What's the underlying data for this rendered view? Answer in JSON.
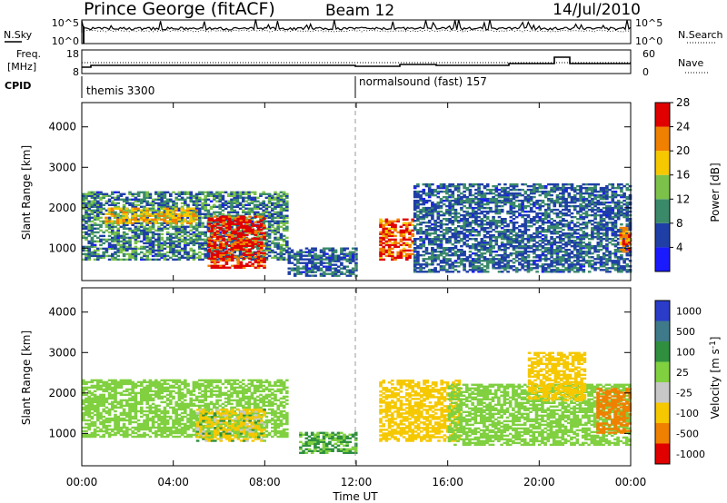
{
  "header": {
    "station": "Prince George (fitACF)",
    "beam": "Beam 12",
    "date": "14/Jul/2010"
  },
  "noise_panel": {
    "left_label": "N.Sky",
    "left_ticks": [
      "10^5",
      "10^0"
    ],
    "right_label": "N.Search",
    "right_ticks": [
      "10^5",
      "10^0"
    ]
  },
  "freq_panel": {
    "left_label_1": "Freq.",
    "left_label_2": "[MHz]",
    "left_ticks": [
      "18",
      "8"
    ],
    "right_label": "Nave",
    "right_ticks": [
      "60",
      "0"
    ]
  },
  "cpid": {
    "label": "CPID",
    "programs": [
      {
        "name": "themis 3300",
        "start": "00:00"
      },
      {
        "name": "normalsound (fast) 157",
        "start": "12:00"
      }
    ]
  },
  "time_axis": {
    "label": "Time UT",
    "ticks": [
      "00:00",
      "04:00",
      "08:00",
      "12:00",
      "16:00",
      "20:00",
      "00:00"
    ]
  },
  "range_axis": {
    "label": "Slant Range [km]",
    "ticks": [
      "1000",
      "2000",
      "3000",
      "4000"
    ]
  },
  "power_scale": {
    "label": "Power [dB]",
    "ticks": [
      "4",
      "8",
      "12",
      "16",
      "20",
      "24",
      "28"
    ],
    "colors": [
      "#1a1aff",
      "#1f3fa6",
      "#3a8a6a",
      "#7cc24a",
      "#f5c800",
      "#f08000",
      "#e00000"
    ]
  },
  "velocity_scale": {
    "label": "Velocity [m s^-1]",
    "ticks": [
      "1000",
      "500",
      "100",
      "25",
      "-25",
      "-100",
      "-500",
      "-1000"
    ],
    "colors": [
      "#2a3cc8",
      "#3f7a8a",
      "#2f8f3f",
      "#80d040",
      "#c8c8c8",
      "#f5c800",
      "#f08000",
      "#e00000"
    ]
  },
  "chart_data": [
    {
      "type": "heatmap",
      "title": "Power",
      "xlabel": "Time UT",
      "ylabel": "Slant Range [km]",
      "xlim": [
        "00:00",
        "24:00"
      ],
      "ylim": [
        200,
        4600
      ],
      "colorbar": {
        "label": "Power [dB]",
        "range": [
          0,
          30
        ]
      },
      "features": [
        {
          "t_start": 0.0,
          "t_end": 9.0,
          "range_start": 700,
          "range_end": 2400,
          "power_db": "4-16"
        },
        {
          "t_start": 1.0,
          "t_end": 5.0,
          "range_start": 1600,
          "range_end": 2000,
          "power_db": "16-24"
        },
        {
          "t_start": 5.5,
          "t_end": 8.0,
          "range_start": 500,
          "range_end": 1800,
          "power_db": "24-30"
        },
        {
          "t_start": 9.0,
          "t_end": 12.0,
          "range_start": 300,
          "range_end": 1000,
          "power_db": "4-12"
        },
        {
          "t_start": 13.0,
          "t_end": 14.5,
          "range_start": 700,
          "range_end": 1700,
          "power_db": "20-30"
        },
        {
          "t_start": 14.5,
          "t_end": 24.0,
          "range_start": 400,
          "range_end": 2600,
          "power_db": "4-12"
        },
        {
          "t_start": 23.5,
          "t_end": 24.0,
          "range_start": 900,
          "range_end": 1500,
          "power_db": "20-28"
        }
      ]
    },
    {
      "type": "heatmap",
      "title": "Velocity",
      "xlabel": "Time UT",
      "ylabel": "Slant Range [km]",
      "xlim": [
        "00:00",
        "24:00"
      ],
      "ylim": [
        200,
        4600
      ],
      "colorbar": {
        "label": "Velocity [m s^-1]",
        "range": [
          -1000,
          1000
        ]
      },
      "features": [
        {
          "t_start": 0.0,
          "t_end": 9.0,
          "range_start": 900,
          "range_end": 2300,
          "velocity_ms": "-25 to 25"
        },
        {
          "t_start": 5.0,
          "t_end": 8.0,
          "range_start": 800,
          "range_end": 1600,
          "velocity_ms": "-500 to 100"
        },
        {
          "t_start": 9.5,
          "t_end": 12.0,
          "range_start": 500,
          "range_end": 1000,
          "velocity_ms": "-25 to 100"
        },
        {
          "t_start": 13.0,
          "t_end": 16.5,
          "range_start": 800,
          "range_end": 2300,
          "velocity_ms": "-500 to -100"
        },
        {
          "t_start": 16.0,
          "t_end": 24.0,
          "range_start": 700,
          "range_end": 2200,
          "velocity_ms": "-25 to 25"
        },
        {
          "t_start": 19.5,
          "t_end": 22.0,
          "range_start": 1800,
          "range_end": 3000,
          "velocity_ms": "-500 to -100"
        },
        {
          "t_start": 22.5,
          "t_end": 24.0,
          "range_start": 1000,
          "range_end": 2100,
          "velocity_ms": "-1000 to -500"
        }
      ]
    }
  ]
}
